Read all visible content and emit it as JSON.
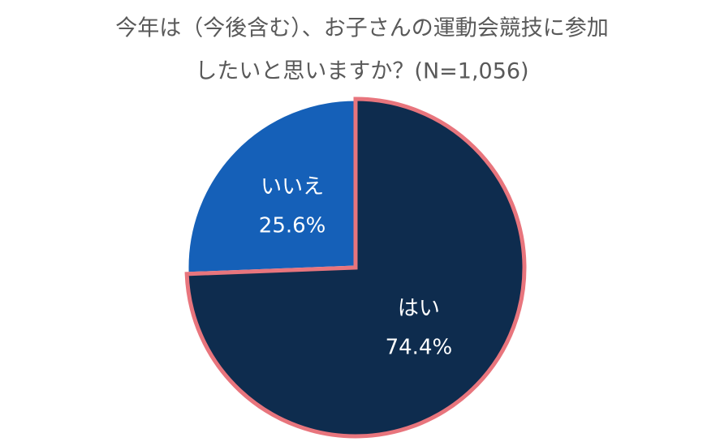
{
  "chart_data": {
    "type": "pie",
    "title_lines": [
      "今年は（今後含む）、お子さんの運動会競技に参加",
      "したいと思いますか？(N=1,056)"
    ],
    "categories": [
      "はい",
      "いいえ"
    ],
    "values": [
      74.4,
      25.6
    ],
    "value_labels": [
      "74.4%",
      "25.6%"
    ],
    "colors": [
      "#0e2c4e",
      "#1560b8"
    ],
    "edgecolors": [
      "#e8757d",
      "#ffffff"
    ]
  }
}
